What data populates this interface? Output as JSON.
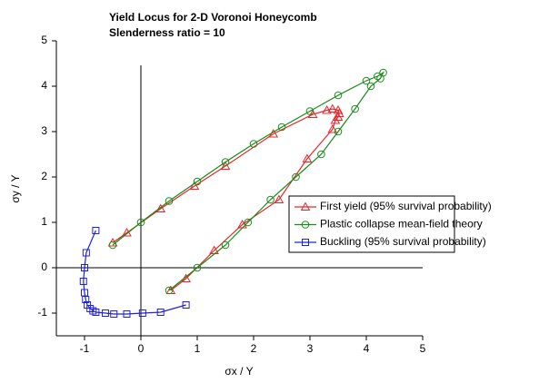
{
  "chart_data": {
    "type": "line",
    "title": "Yield Locus for 2-D Voronoi Honeycomb",
    "subtitle": "Slenderness ratio = 10",
    "x_label": "σx / Y",
    "y_label": "σy / Y",
    "xlim": [
      -1.5,
      5
    ],
    "ylim": [
      -1.5,
      5
    ],
    "xticks": [
      -1,
      0,
      1,
      2,
      3,
      4,
      5
    ],
    "yticks": [
      -1,
      0,
      1,
      2,
      3,
      4,
      5
    ],
    "legend": "right",
    "series": [
      {
        "name": "First yield (95% survival probability)",
        "color": "#e8262a",
        "marker": "triangle",
        "x": [
          -0.5,
          -0.25,
          0.35,
          0.95,
          1.5,
          2.35,
          3.05,
          3.3,
          3.4,
          3.5,
          3.52,
          3.5,
          3.45,
          3.4,
          2.95,
          2.45,
          1.8,
          1.3,
          0.8,
          0.53
        ],
        "values": [
          0.55,
          0.77,
          1.3,
          1.8,
          2.24,
          2.95,
          3.38,
          3.47,
          3.5,
          3.47,
          3.4,
          3.32,
          3.25,
          3.05,
          2.4,
          1.5,
          0.95,
          0.38,
          -0.24,
          -0.5
        ]
      },
      {
        "name": "Plastic collapse mean-field theory",
        "color": "#1a8a1a",
        "marker": "circle",
        "x": [
          -0.5,
          0,
          0.5,
          1.0,
          1.5,
          2.0,
          2.5,
          3.0,
          3.5,
          4.0,
          4.2,
          4.3,
          4.25,
          4.08,
          3.8,
          3.5,
          3.2,
          2.75,
          2.3,
          1.9,
          1.5,
          1.0,
          0.5
        ],
        "values": [
          0.5,
          1.0,
          1.47,
          1.9,
          2.33,
          2.73,
          3.1,
          3.45,
          3.8,
          4.12,
          4.22,
          4.3,
          4.17,
          4.0,
          3.5,
          3.0,
          2.5,
          2.0,
          1.5,
          1.0,
          0.5,
          0.0,
          -0.5
        ]
      },
      {
        "name": "Buckling (95% survival probability)",
        "color": "#2020e0",
        "marker": "square",
        "x": [
          -0.8,
          -0.97,
          -1.0,
          -1.02,
          -1.0,
          -0.98,
          -0.95,
          -0.9,
          -0.85,
          -0.8,
          -0.63,
          -0.48,
          -0.25,
          0.03,
          0.35,
          0.8
        ],
        "values": [
          0.82,
          0.33,
          0.0,
          -0.3,
          -0.55,
          -0.7,
          -0.82,
          -0.9,
          -0.95,
          -0.98,
          -1.0,
          -1.02,
          -1.02,
          -1.0,
          -0.98,
          -0.82
        ]
      }
    ]
  }
}
